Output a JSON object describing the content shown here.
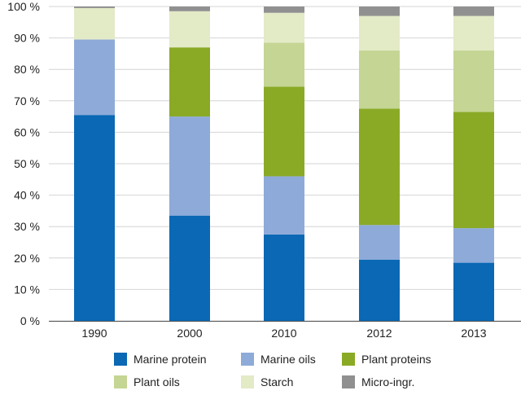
{
  "chart_data": {
    "type": "bar",
    "stacked": true,
    "categories": [
      "1990",
      "2000",
      "2010",
      "2012",
      "2013"
    ],
    "series": [
      {
        "name": "Marine protein",
        "color": "#0a68b4",
        "values": [
          65.5,
          33.5,
          27.5,
          19.5,
          18.5
        ]
      },
      {
        "name": "Marine oils",
        "color": "#8eaad9",
        "values": [
          24.0,
          31.5,
          18.5,
          11.0,
          11.0
        ]
      },
      {
        "name": "Plant proteins",
        "color": "#8aaa26",
        "values": [
          0,
          22.0,
          28.5,
          37.0,
          37.0
        ]
      },
      {
        "name": "Plant oils",
        "color": "#c5d594",
        "values": [
          0,
          0,
          14.0,
          18.5,
          19.5
        ]
      },
      {
        "name": "Starch",
        "color": "#e3eac6",
        "values": [
          10.0,
          11.5,
          9.5,
          11.0,
          11.0
        ]
      },
      {
        "name": "Micro-ingr.",
        "color": "#909090",
        "values": [
          0.5,
          1.5,
          2.0,
          3.0,
          3.0
        ]
      }
    ],
    "yticks": [
      "0 %",
      "10 %",
      "20 %",
      "30 %",
      "40 %",
      "50 %",
      "60 %",
      "70 %",
      "80 %",
      "90 %",
      "100 %"
    ],
    "ylim": [
      0,
      100
    ],
    "grid": true,
    "legend_position": "bottom",
    "title": "",
    "xlabel": "",
    "ylabel": ""
  }
}
